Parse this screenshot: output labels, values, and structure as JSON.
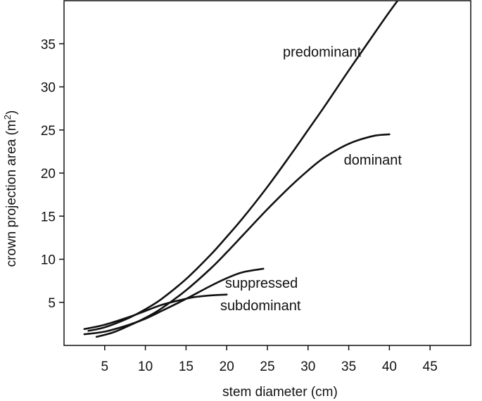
{
  "chart_data": {
    "type": "line",
    "title": "",
    "xlabel": "stem diameter (cm)",
    "ylabel": "crown projection area (m",
    "ylabel_sup": "2",
    "ylabel_end": ")",
    "xlim": [
      0,
      50
    ],
    "ylim": [
      0,
      40
    ],
    "xticks": [
      5,
      10,
      15,
      20,
      25,
      30,
      35,
      40,
      45
    ],
    "yticks": [
      5,
      10,
      15,
      20,
      25,
      30,
      35
    ],
    "grid": false,
    "legend": "none",
    "series": [
      {
        "name": "predominant",
        "label_at": [
          26.9,
          33.5
        ],
        "x": [
          3,
          5,
          8,
          10,
          12,
          15,
          18,
          20,
          22,
          25,
          28,
          30,
          32,
          35,
          38,
          40,
          42,
          43.9
        ],
        "y": [
          1.7,
          2.1,
          3.2,
          4.2,
          5.4,
          7.7,
          10.5,
          12.6,
          14.8,
          18.4,
          22.3,
          25.0,
          27.7,
          31.9,
          36.0,
          38.7,
          41.3,
          44.0
        ]
      },
      {
        "name": "dominant",
        "label_at": [
          34.4,
          21.0
        ],
        "x": [
          4,
          6,
          8,
          10,
          12,
          15,
          18,
          20,
          22,
          25,
          28,
          30,
          32,
          35,
          38,
          40
        ],
        "y": [
          1.0,
          1.5,
          2.3,
          3.2,
          4.3,
          6.4,
          8.9,
          10.8,
          12.8,
          15.8,
          18.6,
          20.3,
          21.8,
          23.4,
          24.3,
          24.5
        ]
      },
      {
        "name": "subdominant",
        "label_at": [
          19.2,
          4.1
        ],
        "x": [
          2.5,
          5,
          8,
          10,
          12,
          15,
          18,
          20,
          22,
          24.5
        ],
        "y": [
          1.3,
          1.6,
          2.4,
          3.1,
          4.0,
          5.4,
          6.9,
          7.8,
          8.5,
          8.9
        ]
      },
      {
        "name": "suppressed",
        "label_at": [
          19.8,
          6.7
        ],
        "x": [
          2.5,
          5,
          8,
          10,
          12,
          14,
          16,
          18,
          20
        ],
        "y": [
          1.9,
          2.4,
          3.3,
          4.0,
          4.7,
          5.2,
          5.6,
          5.8,
          5.9
        ]
      }
    ]
  }
}
